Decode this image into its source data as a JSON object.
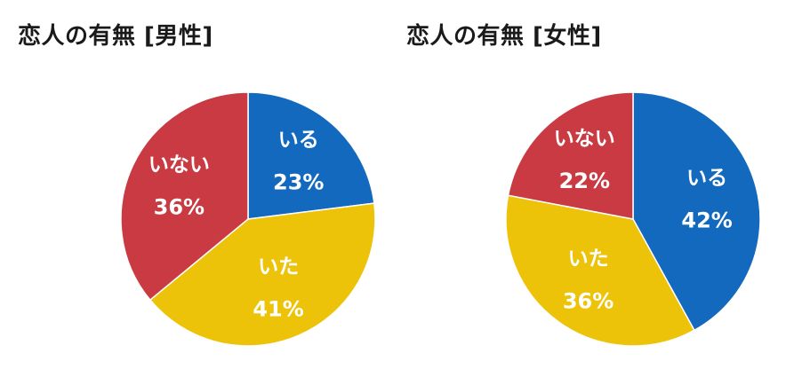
{
  "chart_data": [
    {
      "type": "pie",
      "title": "恋人の有無 [男性]",
      "slices": [
        {
          "label": "いる",
          "value": 23,
          "value_text": "23%",
          "color": "#1269BD"
        },
        {
          "label": "いた",
          "value": 41,
          "value_text": "41%",
          "color": "#EDC30A"
        },
        {
          "label": "いない",
          "value": 36,
          "value_text": "36%",
          "color": "#C93A42"
        }
      ]
    },
    {
      "type": "pie",
      "title": "恋人の有無 [女性]",
      "slices": [
        {
          "label": "いる",
          "value": 42,
          "value_text": "42%",
          "color": "#1269BD"
        },
        {
          "label": "いた",
          "value": 36,
          "value_text": "36%",
          "color": "#EDC30A"
        },
        {
          "label": "いない",
          "value": 22,
          "value_text": "22%",
          "color": "#C93A42"
        }
      ]
    }
  ]
}
